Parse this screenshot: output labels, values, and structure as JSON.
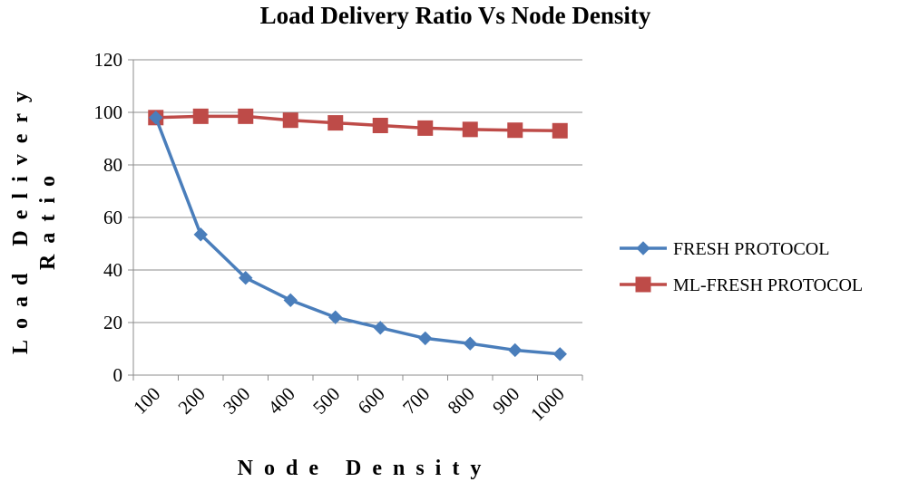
{
  "chart_data": {
    "type": "line",
    "title": "Load Delivery Ratio Vs Node Density",
    "xlabel": "Node Density",
    "ylabel_lines": [
      "Load Delivery",
      "Ratio"
    ],
    "categories": [
      "100",
      "200",
      "300",
      "400",
      "500",
      "600",
      "700",
      "800",
      "900",
      "1000"
    ],
    "ylim": [
      0,
      120
    ],
    "yticks": [
      "0",
      "20",
      "40",
      "60",
      "80",
      "100",
      "120"
    ],
    "grid": true,
    "legend_position": "right",
    "series": [
      {
        "name": "FRESH PROTOCOL",
        "color": "#4a7ebb",
        "marker": "diamond",
        "values": [
          98,
          53.5,
          37,
          28.5,
          22,
          18,
          14,
          12,
          9.5,
          8
        ]
      },
      {
        "name": "ML-FRESH PROTOCOL",
        "color": "#be4b48",
        "marker": "square",
        "values": [
          98,
          98.5,
          98.5,
          97,
          96,
          95,
          94,
          93.5,
          93.2,
          93
        ]
      }
    ]
  }
}
